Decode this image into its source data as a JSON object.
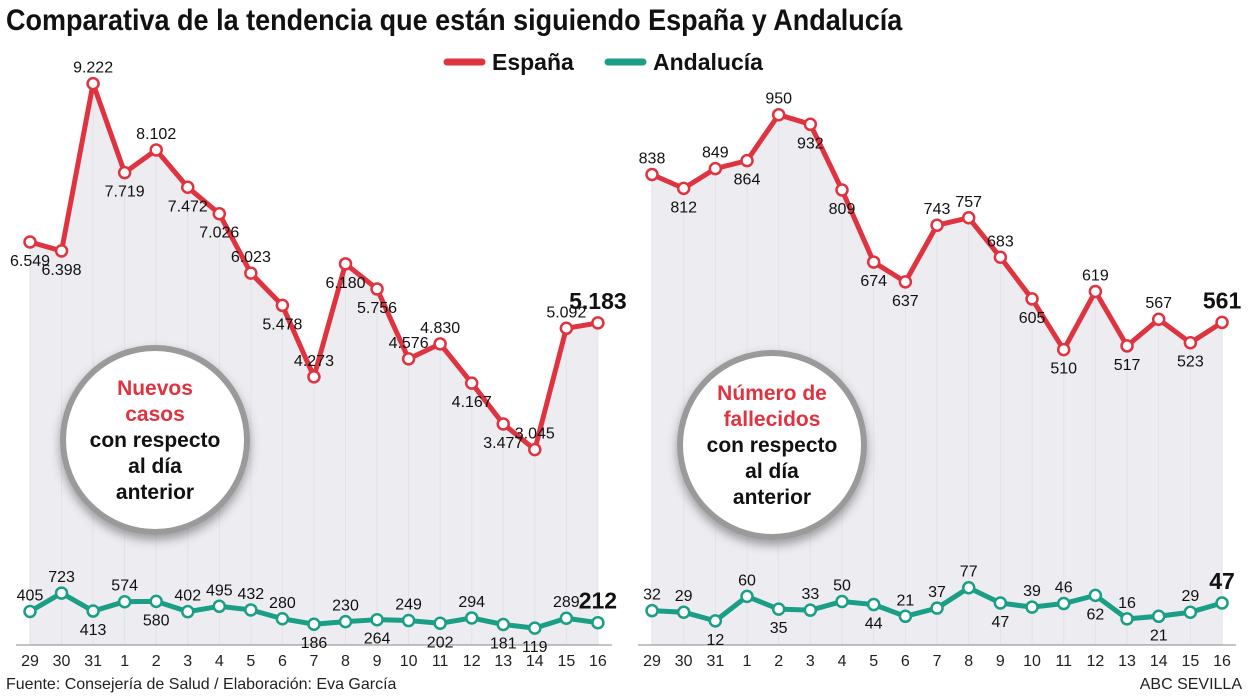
{
  "title": "Comparativa de la tendencia que están siguiendo España y Andalucía",
  "legend": [
    {
      "name": "España",
      "color": "#e03340"
    },
    {
      "name": "Andalucía",
      "color": "#1a9e85"
    }
  ],
  "footer": {
    "source": "Fuente: Consejería de Salud / Elaboración: Eva García",
    "brand": "ABC SEVILLA"
  },
  "chart_data": [
    {
      "type": "line",
      "annotation": {
        "highlight": [
          "Nuevos",
          "casos"
        ],
        "rest": [
          "con respecto",
          "al día",
          "anterior"
        ]
      },
      "categories": [
        "29",
        "30",
        "31",
        "1",
        "2",
        "3",
        "4",
        "5",
        "6",
        "7",
        "8",
        "9",
        "10",
        "11",
        "12",
        "13",
        "14",
        "15",
        "16"
      ],
      "series": [
        {
          "name": "España",
          "values": [
            6549,
            6398,
            9222,
            7719,
            8102,
            7472,
            7026,
            6023,
            5478,
            4273,
            6180,
            5756,
            4576,
            4830,
            4167,
            3477,
            3045,
            5092,
            5183
          ]
        },
        {
          "name": "Andalucía",
          "values": [
            405,
            723,
            413,
            574,
            580,
            402,
            495,
            432,
            280,
            186,
            230,
            264,
            249,
            202,
            294,
            181,
            119,
            289,
            212
          ]
        }
      ]
    },
    {
      "type": "line",
      "annotation": {
        "highlight": [
          "Número de",
          "fallecidos"
        ],
        "rest": [
          "con respecto",
          "al día",
          "anterior"
        ]
      },
      "categories": [
        "29",
        "30",
        "31",
        "1",
        "2",
        "3",
        "4",
        "5",
        "6",
        "7",
        "8",
        "9",
        "10",
        "11",
        "12",
        "13",
        "14",
        "15",
        "16"
      ],
      "series": [
        {
          "name": "España",
          "values": [
            838,
            812,
            849,
            864,
            950,
            932,
            809,
            674,
            637,
            743,
            757,
            683,
            605,
            510,
            619,
            517,
            567,
            523,
            561
          ]
        },
        {
          "name": "Andalucía",
          "values": [
            32,
            29,
            12,
            60,
            35,
            33,
            50,
            44,
            21,
            37,
            77,
            47,
            39,
            46,
            62,
            16,
            21,
            29,
            47
          ]
        }
      ]
    }
  ]
}
